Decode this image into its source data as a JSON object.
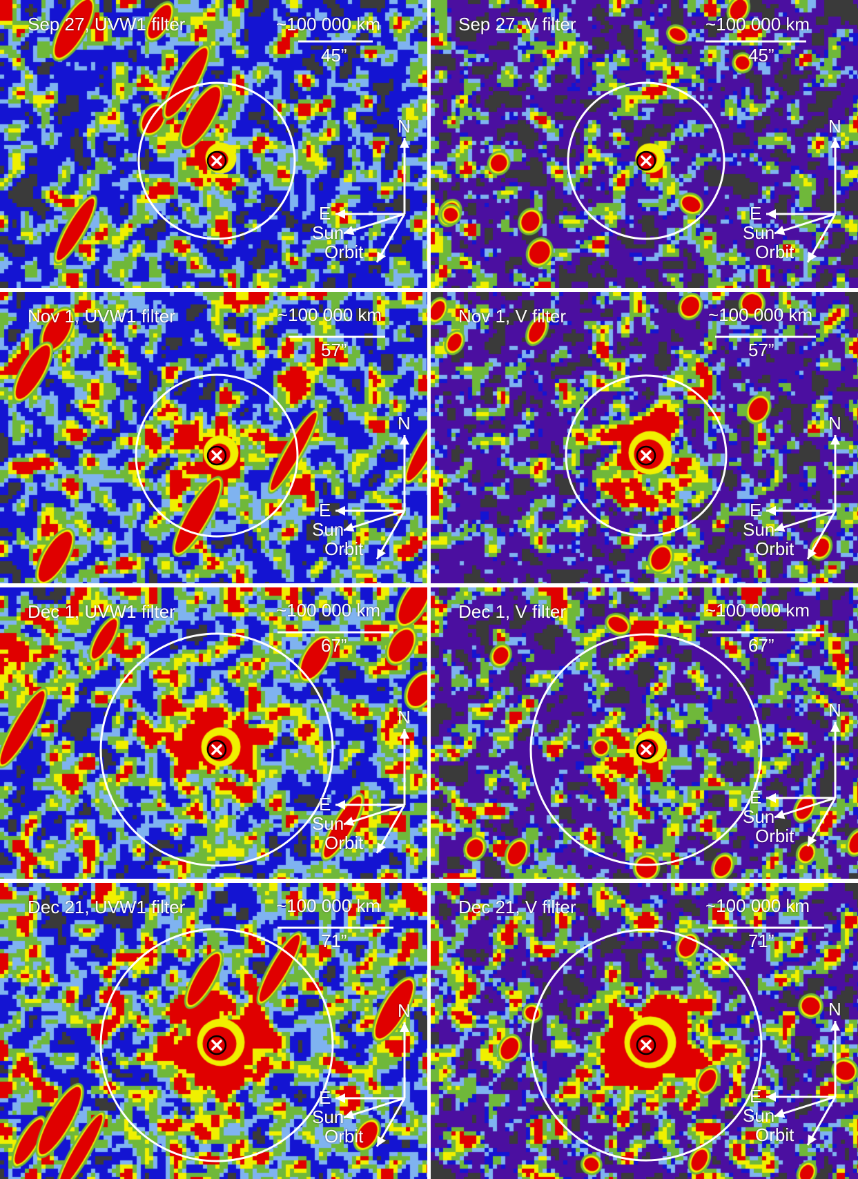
{
  "panels": [
    {
      "id": "p1",
      "title": "Sep 27, UVW1 filter",
      "scale_km": "~100 000 km",
      "scale_arcsec": "45”",
      "compass": {
        "north": "N",
        "east": "E",
        "sun": "Sun",
        "orbit": "Orbit"
      }
    },
    {
      "id": "p2",
      "title": "Sep 27, V filter",
      "scale_km": "~100 000 km",
      "scale_arcsec": "45”",
      "compass": {
        "north": "N",
        "east": "E",
        "sun": "Sun",
        "orbit": "Orbit"
      }
    },
    {
      "id": "p3",
      "title": "Nov 1, UVW1 filter",
      "scale_km": "~100 000 km",
      "scale_arcsec": "57”",
      "compass": {
        "north": "N",
        "east": "E",
        "sun": "Sun",
        "orbit": "Orbit"
      }
    },
    {
      "id": "p4",
      "title": "Nov 1, V filter",
      "scale_km": "~100 000 km",
      "scale_arcsec": "57”",
      "compass": {
        "north": "N",
        "east": "E",
        "sun": "Sun",
        "orbit": "Orbit"
      }
    },
    {
      "id": "p5",
      "title": "Dec 1, UVW1 filter",
      "scale_km": "~100 000 km",
      "scale_arcsec": "67”",
      "compass": {
        "north": "N",
        "east": "E",
        "sun": "Sun",
        "orbit": "Orbit"
      }
    },
    {
      "id": "p6",
      "title": "Dec 1, V filter",
      "scale_km": "~100 000 km",
      "scale_arcsec": "67”",
      "compass": {
        "north": "N",
        "east": "E",
        "sun": "Sun",
        "orbit": "Orbit"
      }
    },
    {
      "id": "p7",
      "title": "Dec 21, UVW1 filter",
      "scale_km": "~100 000 km",
      "scale_arcsec": "71”",
      "compass": {
        "north": "N",
        "east": "E",
        "sun": "Sun",
        "orbit": "Orbit"
      }
    },
    {
      "id": "p8",
      "title": "Dec 21, V filter",
      "scale_km": "~100 000 km",
      "scale_arcsec": "71”",
      "compass": {
        "north": "N",
        "east": "E",
        "sun": "Sun",
        "orbit": "Orbit"
      }
    }
  ],
  "colormap": [
    "#3a3a3a",
    "#4b0fa0",
    "#1414d2",
    "#7fb3f0",
    "#6fb83a",
    "#f0f000",
    "#e00000"
  ]
}
